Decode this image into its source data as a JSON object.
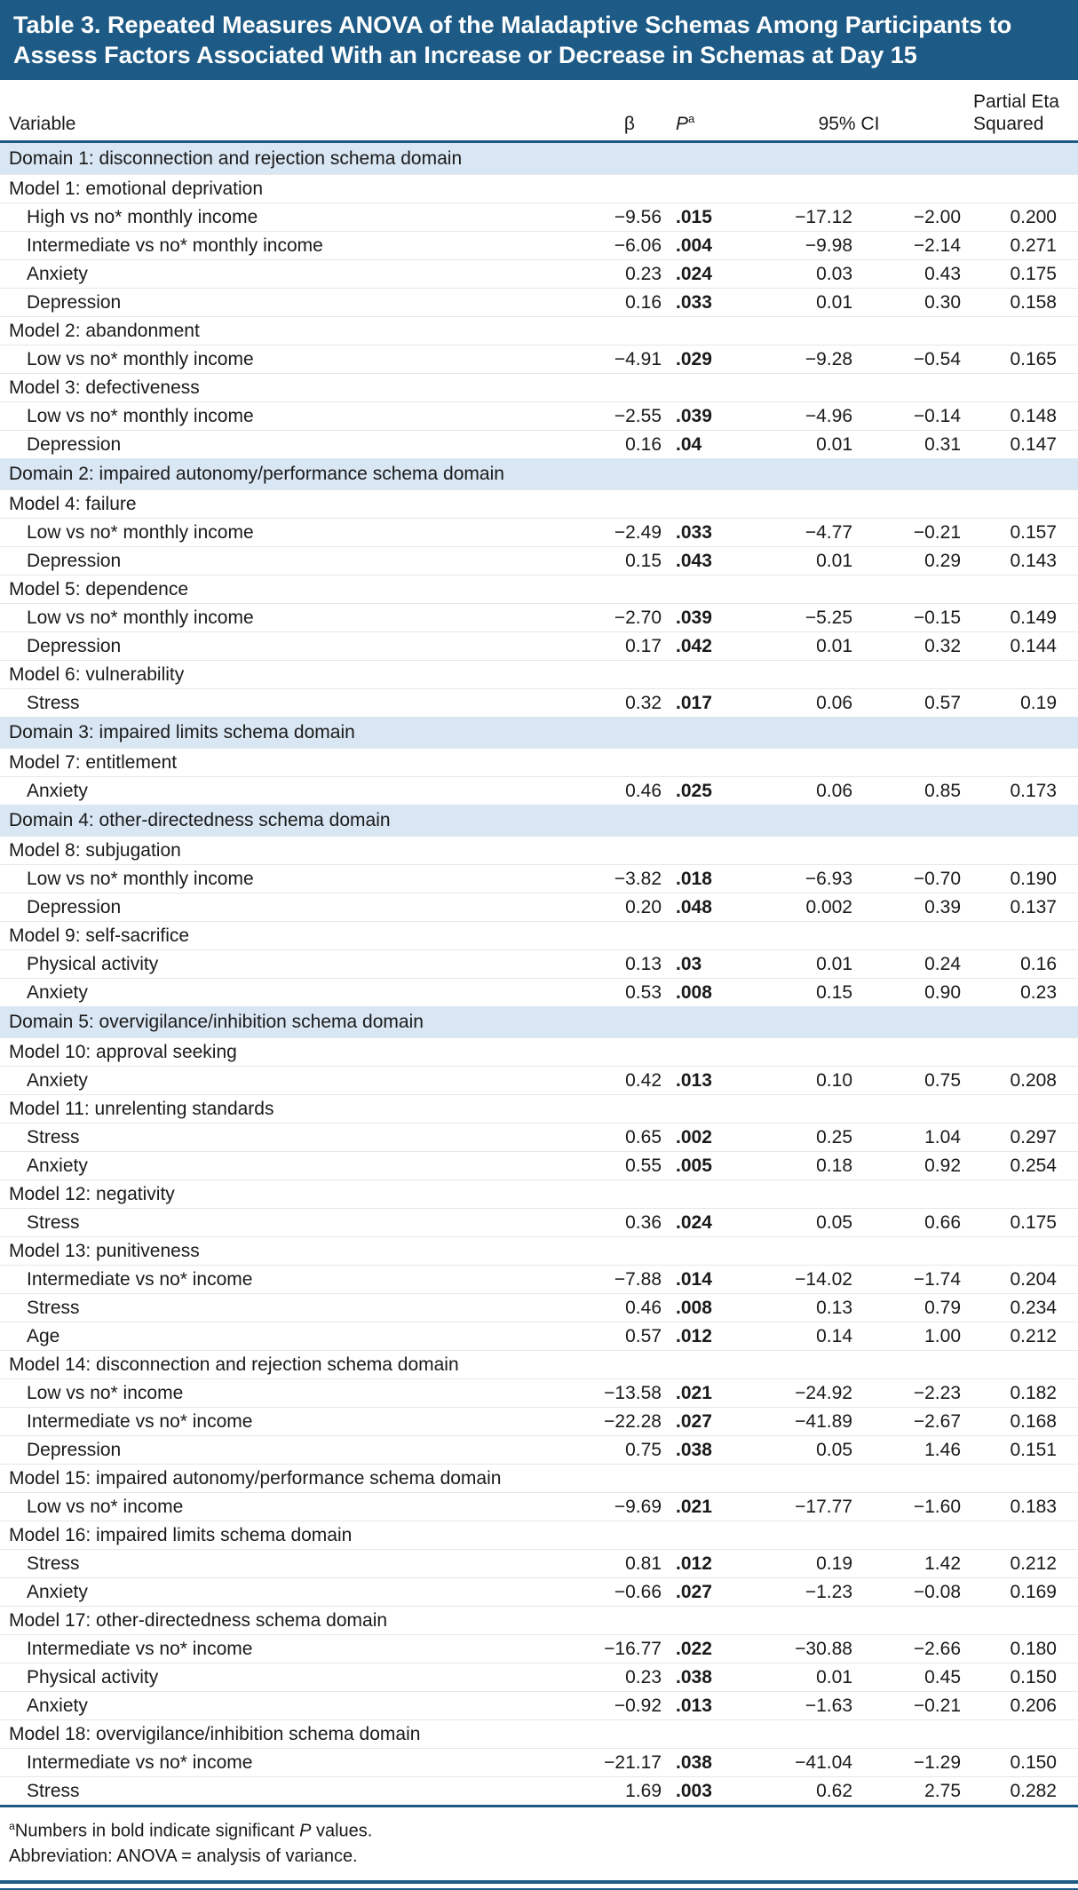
{
  "title": "Table 3. Repeated Measures ANOVA of the Maladaptive Schemas Among Participants to Assess Factors Associated With an Increase or Decrease in Schemas at Day 15",
  "colors": {
    "accent": "#1d5b86",
    "domain_band": "#d9e6f3",
    "text": "#1a1a1a",
    "title_text": "#ffffff"
  },
  "columns": {
    "variable": "Variable",
    "beta": "β",
    "p_label": "P",
    "p_sup": "a",
    "ci": "95% CI",
    "eta": "Partial Eta Squared"
  },
  "rows": [
    {
      "type": "domain",
      "label": "Domain 1: disconnection and rejection schema domain"
    },
    {
      "type": "model",
      "label": "Model 1: emotional deprivation"
    },
    {
      "type": "data",
      "label": "High vs no* monthly income",
      "beta": "−9.56",
      "p": ".015",
      "ci_low": "−17.12",
      "ci_high": "−2.00",
      "eta": "0.200"
    },
    {
      "type": "data",
      "label": "Intermediate vs no* monthly income",
      "beta": "−6.06",
      "p": ".004",
      "ci_low": "−9.98",
      "ci_high": "−2.14",
      "eta": "0.271"
    },
    {
      "type": "data",
      "label": "Anxiety",
      "beta": "0.23",
      "p": ".024",
      "ci_low": "0.03",
      "ci_high": "0.43",
      "eta": "0.175"
    },
    {
      "type": "data",
      "label": "Depression",
      "beta": "0.16",
      "p": ".033",
      "ci_low": "0.01",
      "ci_high": "0.30",
      "eta": "0.158"
    },
    {
      "type": "model",
      "label": "Model 2: abandonment"
    },
    {
      "type": "data",
      "label": "Low vs no* monthly income",
      "beta": "−4.91",
      "p": ".029",
      "ci_low": "−9.28",
      "ci_high": "−0.54",
      "eta": "0.165"
    },
    {
      "type": "model",
      "label": "Model 3: defectiveness"
    },
    {
      "type": "data",
      "label": "Low vs no* monthly income",
      "beta": "−2.55",
      "p": ".039",
      "ci_low": "−4.96",
      "ci_high": "−0.14",
      "eta": "0.148"
    },
    {
      "type": "data",
      "label": "Depression",
      "beta": "0.16",
      "p": ".04",
      "ci_low": "0.01",
      "ci_high": "0.31",
      "eta": "0.147"
    },
    {
      "type": "domain",
      "label": "Domain 2: impaired autonomy/performance schema domain"
    },
    {
      "type": "model",
      "label": "Model 4: failure"
    },
    {
      "type": "data",
      "label": "Low vs no* monthly income",
      "beta": "−2.49",
      "p": ".033",
      "ci_low": "−4.77",
      "ci_high": "−0.21",
      "eta": "0.157"
    },
    {
      "type": "data",
      "label": "Depression",
      "beta": "0.15",
      "p": ".043",
      "ci_low": "0.01",
      "ci_high": "0.29",
      "eta": "0.143"
    },
    {
      "type": "model",
      "label": "Model 5: dependence"
    },
    {
      "type": "data",
      "label": "Low vs no* monthly income",
      "beta": "−2.70",
      "p": ".039",
      "ci_low": "−5.25",
      "ci_high": "−0.15",
      "eta": "0.149"
    },
    {
      "type": "data",
      "label": "Depression",
      "beta": "0.17",
      "p": ".042",
      "ci_low": "0.01",
      "ci_high": "0.32",
      "eta": "0.144"
    },
    {
      "type": "model",
      "label": "Model 6: vulnerability"
    },
    {
      "type": "data",
      "label": "Stress",
      "beta": "0.32",
      "p": ".017",
      "ci_low": "0.06",
      "ci_high": "0.57",
      "eta": "0.19"
    },
    {
      "type": "domain",
      "label": "Domain 3: impaired limits schema domain"
    },
    {
      "type": "model",
      "label": "Model 7: entitlement"
    },
    {
      "type": "data",
      "label": "Anxiety",
      "beta": "0.46",
      "p": ".025",
      "ci_low": "0.06",
      "ci_high": "0.85",
      "eta": "0.173"
    },
    {
      "type": "domain",
      "label": "Domain 4: other-directedness schema domain"
    },
    {
      "type": "model",
      "label": "Model 8: subjugation"
    },
    {
      "type": "data",
      "label": "Low vs no* monthly income",
      "beta": "−3.82",
      "p": ".018",
      "ci_low": "−6.93",
      "ci_high": "−0.70",
      "eta": "0.190"
    },
    {
      "type": "data",
      "label": "Depression",
      "beta": "0.20",
      "p": ".048",
      "ci_low": "0.002",
      "ci_high": "0.39",
      "eta": "0.137"
    },
    {
      "type": "model",
      "label": "Model 9: self-sacrifice"
    },
    {
      "type": "data",
      "label": "Physical activity",
      "beta": "0.13",
      "p": ".03",
      "ci_low": "0.01",
      "ci_high": "0.24",
      "eta": "0.16"
    },
    {
      "type": "data",
      "label": "Anxiety",
      "beta": "0.53",
      "p": ".008",
      "ci_low": "0.15",
      "ci_high": "0.90",
      "eta": "0.23"
    },
    {
      "type": "domain",
      "label": "Domain 5: overvigilance/inhibition schema domain"
    },
    {
      "type": "model",
      "label": "Model 10: approval seeking"
    },
    {
      "type": "data",
      "label": "Anxiety",
      "beta": "0.42",
      "p": ".013",
      "ci_low": "0.10",
      "ci_high": "0.75",
      "eta": "0.208"
    },
    {
      "type": "model",
      "label": "Model 11: unrelenting standards"
    },
    {
      "type": "data",
      "label": "Stress",
      "beta": "0.65",
      "p": ".002",
      "ci_low": "0.25",
      "ci_high": "1.04",
      "eta": "0.297"
    },
    {
      "type": "data",
      "label": "Anxiety",
      "beta": "0.55",
      "p": ".005",
      "ci_low": "0.18",
      "ci_high": "0.92",
      "eta": "0.254"
    },
    {
      "type": "model",
      "label": "Model 12: negativity"
    },
    {
      "type": "data",
      "label": "Stress",
      "beta": "0.36",
      "p": ".024",
      "ci_low": "0.05",
      "ci_high": "0.66",
      "eta": "0.175"
    },
    {
      "type": "model",
      "label": "Model 13: punitiveness"
    },
    {
      "type": "data",
      "label": "Intermediate vs no* income",
      "beta": "−7.88",
      "p": ".014",
      "ci_low": "−14.02",
      "ci_high": "−1.74",
      "eta": "0.204"
    },
    {
      "type": "data",
      "label": "Stress",
      "beta": "0.46",
      "p": ".008",
      "ci_low": "0.13",
      "ci_high": "0.79",
      "eta": "0.234"
    },
    {
      "type": "data",
      "label": "Age",
      "beta": "0.57",
      "p": ".012",
      "ci_low": "0.14",
      "ci_high": "1.00",
      "eta": "0.212"
    },
    {
      "type": "model",
      "label": "Model 14: disconnection and rejection schema domain"
    },
    {
      "type": "data",
      "label": "Low vs no* income",
      "beta": "−13.58",
      "p": ".021",
      "ci_low": "−24.92",
      "ci_high": "−2.23",
      "eta": "0.182"
    },
    {
      "type": "data",
      "label": "Intermediate vs no* income",
      "beta": "−22.28",
      "p": ".027",
      "ci_low": "−41.89",
      "ci_high": "−2.67",
      "eta": "0.168"
    },
    {
      "type": "data",
      "label": "Depression",
      "beta": "0.75",
      "p": ".038",
      "ci_low": "0.05",
      "ci_high": "1.46",
      "eta": "0.151"
    },
    {
      "type": "model",
      "label": "Model 15: impaired autonomy/performance schema domain"
    },
    {
      "type": "data",
      "label": "Low vs no* income",
      "beta": "−9.69",
      "p": ".021",
      "ci_low": "−17.77",
      "ci_high": "−1.60",
      "eta": "0.183"
    },
    {
      "type": "model",
      "label": "Model 16: impaired limits schema domain"
    },
    {
      "type": "data",
      "label": "Stress",
      "beta": "0.81",
      "p": ".012",
      "ci_low": "0.19",
      "ci_high": "1.42",
      "eta": "0.212"
    },
    {
      "type": "data",
      "label": "Anxiety",
      "beta": "−0.66",
      "p": ".027",
      "ci_low": "−1.23",
      "ci_high": "−0.08",
      "eta": "0.169"
    },
    {
      "type": "model",
      "label": "Model 17: other-directedness schema domain"
    },
    {
      "type": "data",
      "label": "Intermediate vs no* income",
      "beta": "−16.77",
      "p": ".022",
      "ci_low": "−30.88",
      "ci_high": "−2.66",
      "eta": "0.180"
    },
    {
      "type": "data",
      "label": "Physical activity",
      "beta": "0.23",
      "p": ".038",
      "ci_low": "0.01",
      "ci_high": "0.45",
      "eta": "0.150"
    },
    {
      "type": "data",
      "label": "Anxiety",
      "beta": "−0.92",
      "p": ".013",
      "ci_low": "−1.63",
      "ci_high": "−0.21",
      "eta": "0.206"
    },
    {
      "type": "model",
      "label": "Model 18: overvigilance/inhibition schema domain"
    },
    {
      "type": "data",
      "label": "Intermediate vs no* income",
      "beta": "−21.17",
      "p": ".038",
      "ci_low": "−41.04",
      "ci_high": "−1.29",
      "eta": "0.150"
    },
    {
      "type": "data",
      "label": "Stress",
      "beta": "1.69",
      "p": ".003",
      "ci_low": "0.62",
      "ci_high": "2.75",
      "eta": "0.282"
    }
  ],
  "footnotes": {
    "a_sup": "a",
    "a_pre": "Numbers in bold indicate significant ",
    "a_italic": "P",
    "a_post": " values.",
    "abbrev": "Abbreviation: ANOVA = analysis of variance."
  }
}
